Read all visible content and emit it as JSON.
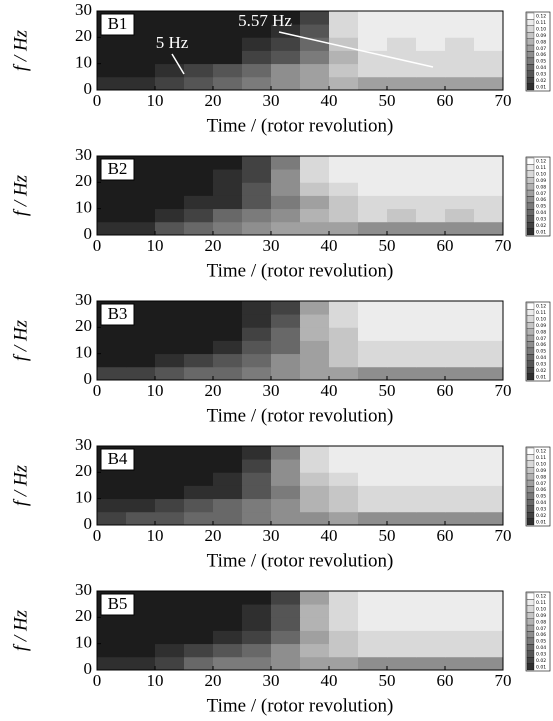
{
  "chart_data": [
    {
      "type": "heatmap",
      "panel_label": "B1",
      "xlabel": "Time / (rotor revolution)",
      "ylabel": "f / Hz",
      "annotations": [
        "5 Hz",
        "5.57 Hz"
      ],
      "x": [
        2.5,
        7.5,
        12.5,
        17.5,
        22.5,
        27.5,
        32.5,
        37.5,
        42.5,
        47.5,
        52.5,
        57.5,
        62.5,
        67.5
      ],
      "y": [
        2.5,
        7.5,
        12.5,
        17.5,
        22.5,
        27.5
      ],
      "z": [
        [
          0.01,
          0.01,
          0.02,
          0.03,
          0.04,
          0.05,
          0.06,
          0.07,
          0.08,
          0.07,
          0.07,
          0.07,
          0.07,
          0.07
        ],
        [
          0,
          0,
          0.01,
          0.02,
          0.03,
          0.04,
          0.06,
          0.07,
          0.09,
          0.1,
          0.1,
          0.1,
          0.1,
          0.1
        ],
        [
          0,
          0,
          0,
          0,
          0,
          0.02,
          0.03,
          0.05,
          0.08,
          0.1,
          0.1,
          0.1,
          0.1,
          0.1
        ],
        [
          0,
          0,
          0,
          0,
          0,
          0.01,
          0.02,
          0.04,
          0.09,
          0.11,
          0.1,
          0.11,
          0.1,
          0.11
        ],
        [
          0,
          0,
          0,
          0,
          0,
          0,
          0.01,
          0.03,
          0.1,
          0.11,
          0.11,
          0.11,
          0.11,
          0.11
        ],
        [
          0,
          0,
          0,
          0,
          0,
          0,
          0,
          0.02,
          0.1,
          0.11,
          0.11,
          0.11,
          0.11,
          0.11
        ]
      ],
      "zlim": [
        0,
        0.12
      ],
      "colormap": [
        "#1c1c1c",
        "#ffffff"
      ],
      "ctick": [
        0.12,
        0.11,
        {
          "value": 0.1,
          "label": "0.10"
        },
        0.09,
        0.08,
        0.07,
        0.06,
        0.05,
        0.04,
        0.03,
        0.02,
        0.01
      ],
      "xlim": [
        0,
        70
      ],
      "xticks": [
        0,
        10,
        20,
        30,
        40,
        50,
        60,
        70
      ],
      "ylim": [
        0,
        30
      ],
      "yticks": [
        0,
        10,
        20,
        30
      ]
    },
    {
      "type": "heatmap",
      "panel_label": "B2",
      "xlabel": "Time / (rotor revolution)",
      "ylabel": "f / Hz",
      "x": [
        2.5,
        7.5,
        12.5,
        17.5,
        22.5,
        27.5,
        32.5,
        37.5,
        42.5,
        47.5,
        52.5,
        57.5,
        62.5,
        67.5
      ],
      "y": [
        2.5,
        7.5,
        12.5,
        17.5,
        22.5,
        27.5
      ],
      "z": [
        [
          0.01,
          0.01,
          0.03,
          0.04,
          0.05,
          0.06,
          0.07,
          0.07,
          0.07,
          0.06,
          0.06,
          0.06,
          0.06,
          0.06
        ],
        [
          0,
          0,
          0.01,
          0.02,
          0.04,
          0.05,
          0.06,
          0.08,
          0.09,
          0.1,
          0.09,
          0.1,
          0.09,
          0.1
        ],
        [
          0,
          0,
          0,
          0.01,
          0.01,
          0.03,
          0.05,
          0.07,
          0.09,
          0.1,
          0.1,
          0.1,
          0.1,
          0.1
        ],
        [
          0,
          0,
          0,
          0,
          0.01,
          0.03,
          0.06,
          0.09,
          0.1,
          0.11,
          0.11,
          0.11,
          0.11,
          0.11
        ],
        [
          0,
          0,
          0,
          0,
          0.01,
          0.02,
          0.06,
          0.1,
          0.11,
          0.11,
          0.11,
          0.11,
          0.11,
          0.11
        ],
        [
          0,
          0,
          0,
          0,
          0,
          0.02,
          0.05,
          0.1,
          0.11,
          0.11,
          0.11,
          0.11,
          0.11,
          0.11
        ]
      ],
      "zlim": [
        0,
        0.12
      ],
      "colormap": [
        "#1c1c1c",
        "#ffffff"
      ],
      "ctick": [
        0.12,
        0.11,
        {
          "value": 0.1,
          "label": "0.10"
        },
        0.09,
        0.08,
        0.07,
        0.06,
        0.05,
        0.04,
        0.03,
        0.02,
        0.01
      ],
      "xlim": [
        0,
        70
      ],
      "xticks": [
        0,
        10,
        20,
        30,
        40,
        50,
        60,
        70
      ],
      "ylim": [
        0,
        30
      ],
      "yticks": [
        0,
        10,
        20,
        30
      ]
    },
    {
      "type": "heatmap",
      "panel_label": "B3",
      "xlabel": "Time / (rotor revolution)",
      "ylabel": "f / Hz",
      "x": [
        2.5,
        7.5,
        12.5,
        17.5,
        22.5,
        27.5,
        32.5,
        37.5,
        42.5,
        47.5,
        52.5,
        57.5,
        62.5,
        67.5
      ],
      "y": [
        2.5,
        7.5,
        12.5,
        17.5,
        22.5,
        27.5
      ],
      "z": [
        [
          0.02,
          0.02,
          0.03,
          0.04,
          0.04,
          0.05,
          0.06,
          0.07,
          0.07,
          0.06,
          0.06,
          0.06,
          0.06,
          0.06
        ],
        [
          0,
          0,
          0.01,
          0.02,
          0.03,
          0.04,
          0.06,
          0.07,
          0.09,
          0.1,
          0.1,
          0.1,
          0.1,
          0.1
        ],
        [
          0,
          0,
          0,
          0,
          0.01,
          0.03,
          0.04,
          0.07,
          0.09,
          0.1,
          0.1,
          0.1,
          0.1,
          0.1
        ],
        [
          0,
          0,
          0,
          0,
          0,
          0.02,
          0.04,
          0.08,
          0.09,
          0.11,
          0.11,
          0.11,
          0.11,
          0.11
        ],
        [
          0,
          0,
          0,
          0,
          0,
          0.01,
          0.03,
          0.08,
          0.1,
          0.11,
          0.11,
          0.11,
          0.11,
          0.11
        ],
        [
          0,
          0,
          0,
          0,
          0,
          0.01,
          0.02,
          0.07,
          0.1,
          0.11,
          0.11,
          0.11,
          0.11,
          0.11
        ]
      ],
      "zlim": [
        0,
        0.12
      ],
      "colormap": [
        "#1c1c1c",
        "#ffffff"
      ],
      "ctick": [
        0.12,
        0.11,
        {
          "value": 0.1,
          "label": "0.10"
        },
        0.09,
        0.08,
        0.07,
        0.06,
        0.05,
        0.04,
        0.03,
        0.02,
        0.01
      ],
      "xlim": [
        0,
        70
      ],
      "xticks": [
        0,
        10,
        20,
        30,
        40,
        50,
        60,
        70
      ],
      "ylim": [
        0,
        30
      ],
      "yticks": [
        0,
        10,
        20,
        30
      ]
    },
    {
      "type": "heatmap",
      "panel_label": "B4",
      "xlabel": "Time / (rotor revolution)",
      "ylabel": "f / Hz",
      "x": [
        2.5,
        7.5,
        12.5,
        17.5,
        22.5,
        27.5,
        32.5,
        37.5,
        42.5,
        47.5,
        52.5,
        57.5,
        62.5,
        67.5
      ],
      "y": [
        2.5,
        7.5,
        12.5,
        17.5,
        22.5,
        27.5
      ],
      "z": [
        [
          0.02,
          0.03,
          0.03,
          0.04,
          0.04,
          0.05,
          0.06,
          0.06,
          0.07,
          0.06,
          0.06,
          0.06,
          0.06,
          0.06
        ],
        [
          0.01,
          0.01,
          0.02,
          0.03,
          0.04,
          0.05,
          0.06,
          0.08,
          0.09,
          0.1,
          0.1,
          0.1,
          0.1,
          0.1
        ],
        [
          0,
          0,
          0,
          0.01,
          0.01,
          0.03,
          0.05,
          0.08,
          0.09,
          0.1,
          0.1,
          0.1,
          0.1,
          0.1
        ],
        [
          0,
          0,
          0,
          0,
          0.01,
          0.03,
          0.06,
          0.09,
          0.1,
          0.11,
          0.11,
          0.11,
          0.11,
          0.11
        ],
        [
          0,
          0,
          0,
          0,
          0,
          0.02,
          0.06,
          0.1,
          0.11,
          0.11,
          0.11,
          0.11,
          0.11,
          0.11
        ],
        [
          0,
          0,
          0,
          0,
          0,
          0.01,
          0.05,
          0.1,
          0.11,
          0.11,
          0.11,
          0.11,
          0.11,
          0.11
        ]
      ],
      "zlim": [
        0,
        0.12
      ],
      "colormap": [
        "#1c1c1c",
        "#ffffff"
      ],
      "ctick": [
        0.12,
        0.11,
        {
          "value": 0.1,
          "label": "0.10"
        },
        0.09,
        0.08,
        0.07,
        0.06,
        0.05,
        0.04,
        0.03,
        0.02,
        0.01
      ],
      "xlim": [
        0,
        70
      ],
      "xticks": [
        0,
        10,
        20,
        30,
        40,
        50,
        60,
        70
      ],
      "ylim": [
        0,
        30
      ],
      "yticks": [
        0,
        10,
        20,
        30
      ]
    },
    {
      "type": "heatmap",
      "panel_label": "B5",
      "xlabel": "Time / (rotor revolution)",
      "ylabel": "f / Hz",
      "x": [
        2.5,
        7.5,
        12.5,
        17.5,
        22.5,
        27.5,
        32.5,
        37.5,
        42.5,
        47.5,
        52.5,
        57.5,
        62.5,
        67.5
      ],
      "y": [
        2.5,
        7.5,
        12.5,
        17.5,
        22.5,
        27.5
      ],
      "z": [
        [
          0.01,
          0.01,
          0.02,
          0.04,
          0.05,
          0.05,
          0.06,
          0.07,
          0.07,
          0.06,
          0.06,
          0.06,
          0.06,
          0.06
        ],
        [
          0,
          0,
          0.01,
          0.02,
          0.03,
          0.04,
          0.06,
          0.08,
          0.09,
          0.1,
          0.1,
          0.1,
          0.1,
          0.1
        ],
        [
          0,
          0,
          0,
          0,
          0.01,
          0.02,
          0.04,
          0.07,
          0.09,
          0.1,
          0.1,
          0.1,
          0.1,
          0.1
        ],
        [
          0,
          0,
          0,
          0,
          0,
          0.01,
          0.03,
          0.08,
          0.1,
          0.11,
          0.11,
          0.11,
          0.11,
          0.11
        ],
        [
          0,
          0,
          0,
          0,
          0,
          0.01,
          0.03,
          0.08,
          0.1,
          0.11,
          0.11,
          0.11,
          0.11,
          0.11
        ],
        [
          0,
          0,
          0,
          0,
          0,
          0,
          0.02,
          0.07,
          0.1,
          0.11,
          0.11,
          0.11,
          0.11,
          0.11
        ]
      ],
      "zlim": [
        0,
        0.12
      ],
      "colormap": [
        "#1c1c1c",
        "#ffffff"
      ],
      "ctick": [
        0.12,
        0.11,
        {
          "value": 0.1,
          "label": "0.10"
        },
        0.09,
        0.08,
        0.07,
        0.06,
        0.05,
        0.04,
        0.03,
        0.02,
        0.01
      ],
      "xlim": [
        0,
        70
      ],
      "xticks": [
        0,
        10,
        20,
        30,
        40,
        50,
        60,
        70
      ],
      "ylim": [
        0,
        30
      ],
      "yticks": [
        0,
        10,
        20,
        30
      ]
    }
  ]
}
